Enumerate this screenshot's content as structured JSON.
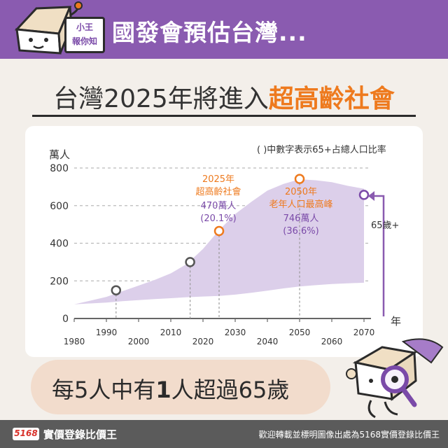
{
  "header": {
    "title": "國發會預估台灣...",
    "badge_line1": "小王",
    "badge_line2": "報你知",
    "colors": {
      "bar": "#8a5bb0",
      "accent_orange": "#ee7a1e",
      "area": "#dccfea"
    }
  },
  "subtitle": {
    "prefix": "台灣2025年將進入",
    "highlight": "超高齡社會"
  },
  "chart_data": {
    "type": "area",
    "note": "( )中數字表示65+占總人口比率",
    "ylabel": "萬人",
    "xlabel": "年",
    "ylim": [
      0,
      800
    ],
    "xlim": [
      1980,
      2070
    ],
    "y_ticks": [
      "0",
      "200",
      "400",
      "600",
      "800"
    ],
    "x_ticks_top": [
      "1990",
      "2010",
      "2030",
      "2050",
      "2070"
    ],
    "x_ticks_bottom": [
      "1980",
      "2000",
      "2020",
      "2040",
      "2060"
    ],
    "grid": "horizontal-dashed",
    "band_x": [
      1980,
      1985,
      1990,
      1995,
      2000,
      2005,
      2010,
      2015,
      2020,
      2025,
      2030,
      2035,
      2040,
      2045,
      2050,
      2055,
      2060,
      2065,
      2070
    ],
    "band_upper": [
      75,
      95,
      115,
      145,
      175,
      205,
      240,
      290,
      370,
      470,
      555,
      620,
      680,
      715,
      740,
      735,
      725,
      705,
      690
    ],
    "band_lower": [
      75,
      80,
      85,
      92,
      98,
      103,
      108,
      113,
      117,
      120,
      127,
      137,
      148,
      160,
      170,
      177,
      183,
      187,
      190
    ],
    "markers": [
      {
        "x": 1993,
        "y": 150,
        "style": "dark"
      },
      {
        "x": 2016,
        "y": 300,
        "style": "dark"
      },
      {
        "x": 2025,
        "y": 465,
        "style": "orange"
      },
      {
        "x": 2050,
        "y": 742,
        "style": "orange"
      },
      {
        "x": 2070,
        "y": 657,
        "style": "purple"
      }
    ],
    "annotations": [
      {
        "year": "2025年",
        "title": "超高齡社會",
        "value": "470萬人",
        "ratio": "(20.1%)"
      },
      {
        "year": "2050年",
        "title": "老年人口最高峰",
        "value": "746萬人",
        "ratio": "(36.6%)"
      }
    ],
    "series_label": "65歲+"
  },
  "callout": {
    "pre": "每5人中有",
    "num": "1",
    "post": "人超過65歲"
  },
  "footer": {
    "logo": "5168",
    "brand": "實價登錄比價王",
    "credit": "歡迎轉載並標明圖像出處為5168實價登錄比價王"
  }
}
